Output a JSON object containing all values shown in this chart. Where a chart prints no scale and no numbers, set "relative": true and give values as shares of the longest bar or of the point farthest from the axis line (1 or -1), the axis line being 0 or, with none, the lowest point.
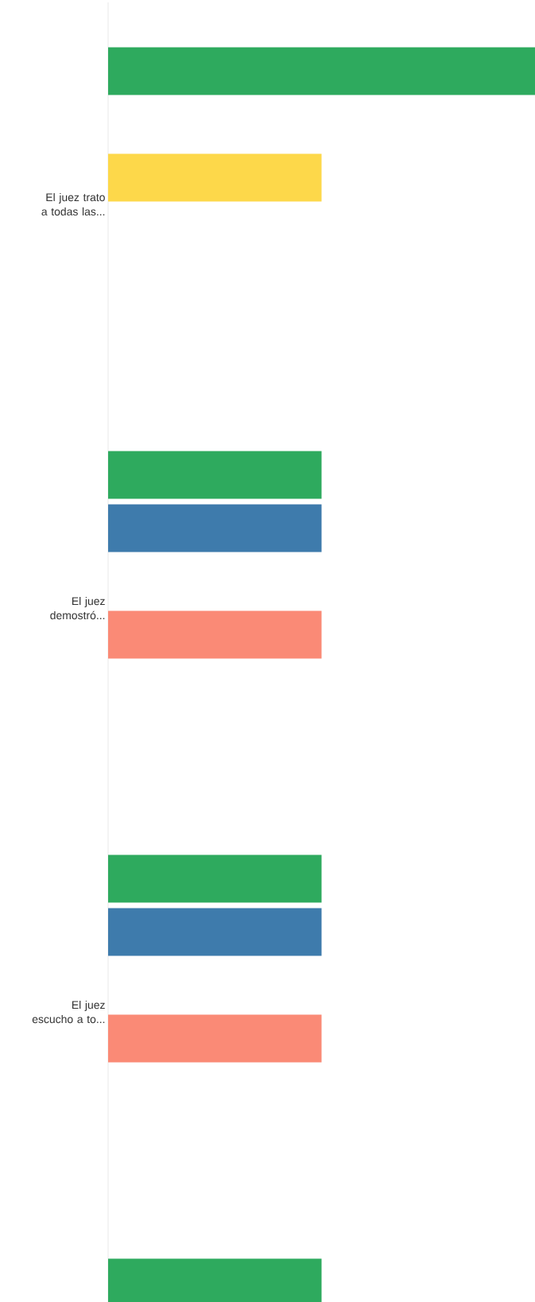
{
  "chart_data": {
    "type": "bar",
    "orientation": "horizontal",
    "relative": true,
    "categories": [
      "El juez trato a todas las...",
      "El juez demostró...",
      "El juez escucho a to...",
      null
    ],
    "series": [
      {
        "color": "#2eaa5e",
        "values": [
          1,
          0.5,
          0.5,
          0.5
        ]
      },
      {
        "color": "#3e7bac",
        "values": [
          0,
          0.5,
          0.5,
          null
        ]
      },
      {
        "color": "#fdd84a",
        "values": [
          0.5,
          0,
          0,
          null
        ]
      },
      {
        "color": "#fa8a76",
        "values": [
          0,
          0.5,
          0.5,
          null
        ]
      }
    ]
  }
}
